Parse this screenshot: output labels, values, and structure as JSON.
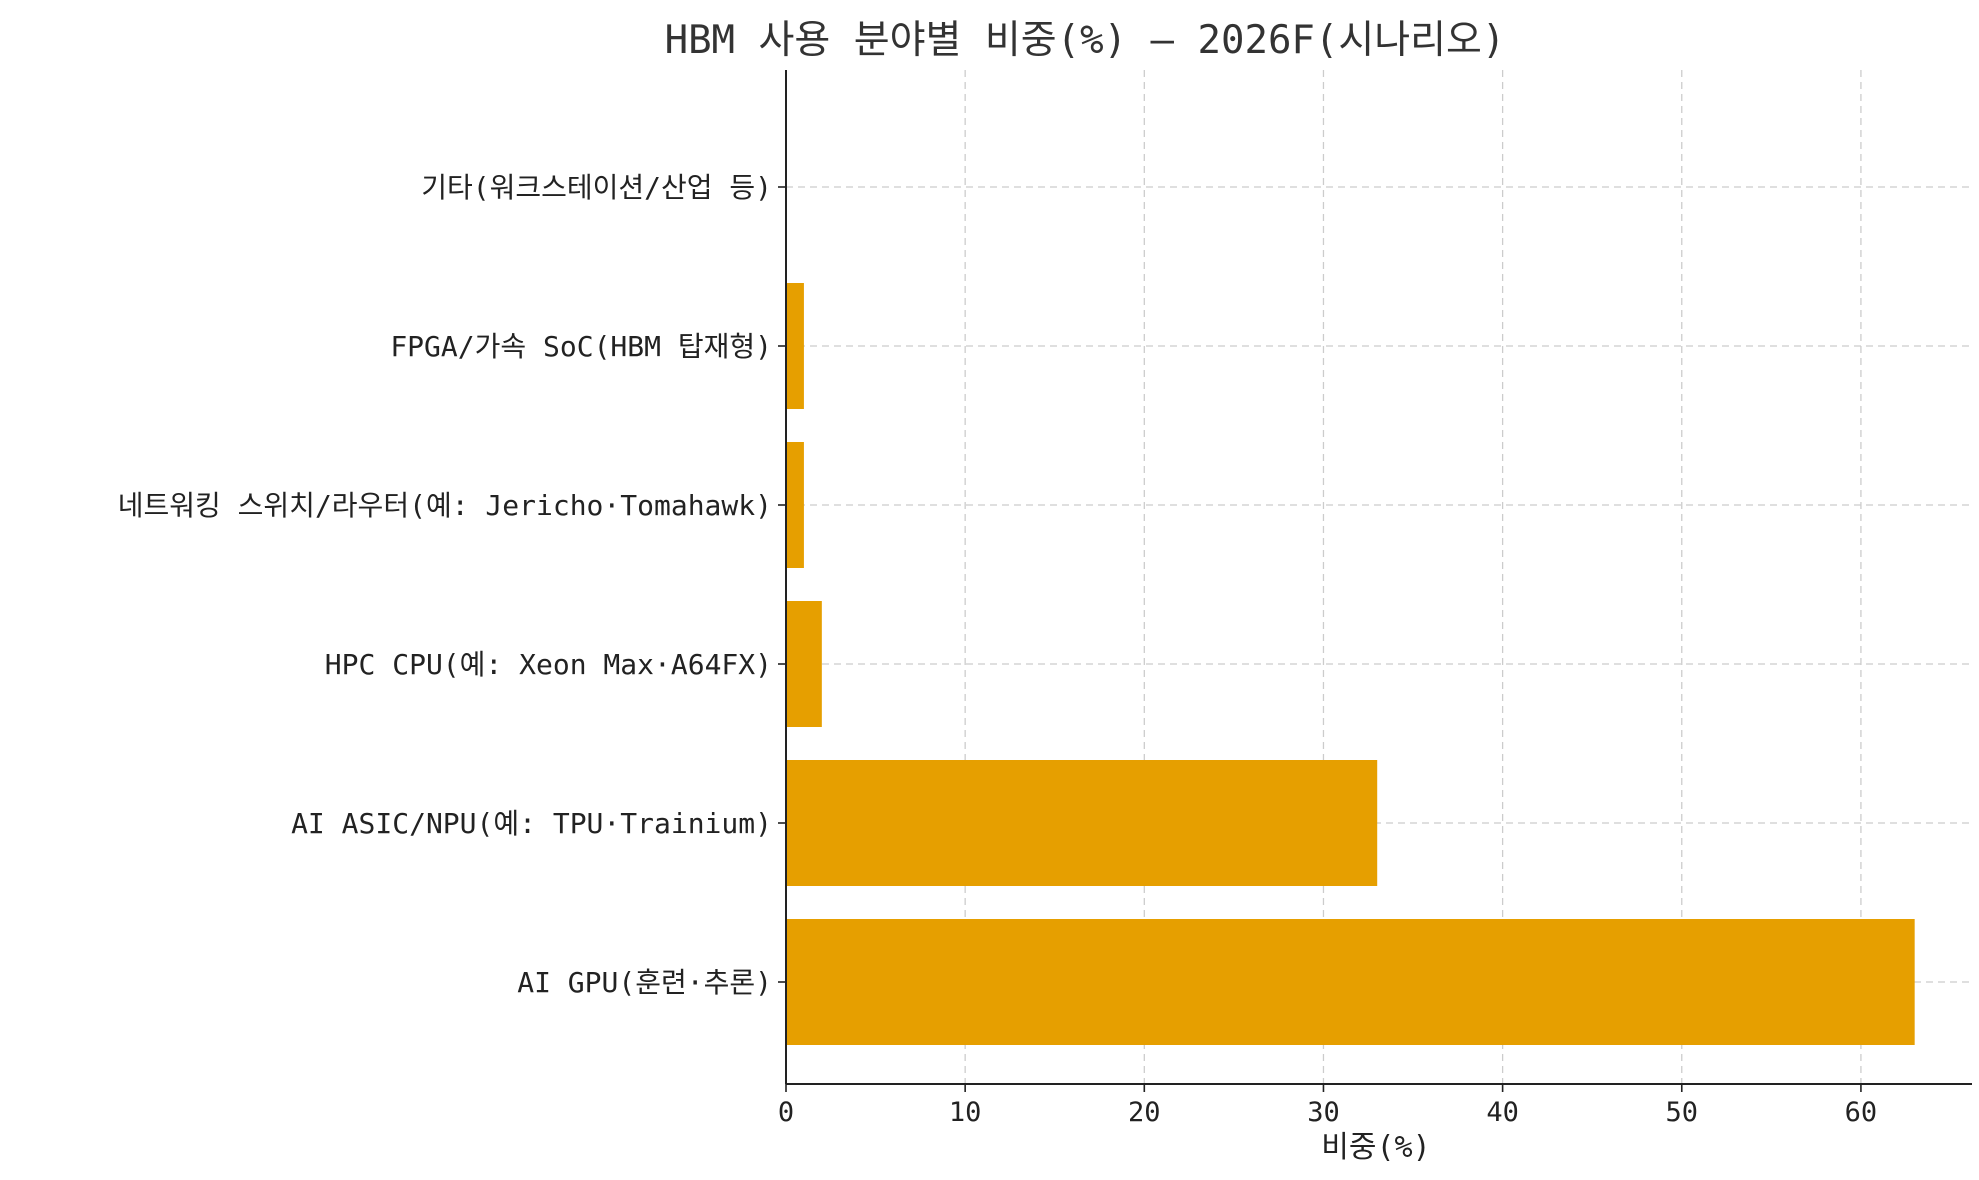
{
  "chart_data": {
    "type": "bar",
    "orientation": "horizontal",
    "title": "HBM 사용 분야별 비중(%) — 2026F(시나리오)",
    "xlabel": "비중(%)",
    "ylabel": "",
    "categories": [
      "AI GPU(훈련·추론)",
      "AI ASIC/NPU(예: TPU·Trainium)",
      "HPC CPU(예: Xeon Max·A64FX)",
      "네트워킹 스위치/라우터(예: Jericho·Tomahawk)",
      "FPGA/가속 SoC(HBM 탑재형)",
      "기타(워크스테이션/산업 등)"
    ],
    "values": [
      63,
      33,
      2,
      1,
      1,
      0
    ],
    "xlim": [
      0,
      66.2
    ],
    "xticks": [
      0,
      10,
      20,
      30,
      40,
      50,
      60
    ],
    "grid": true,
    "bar_color": "#e69f00"
  }
}
